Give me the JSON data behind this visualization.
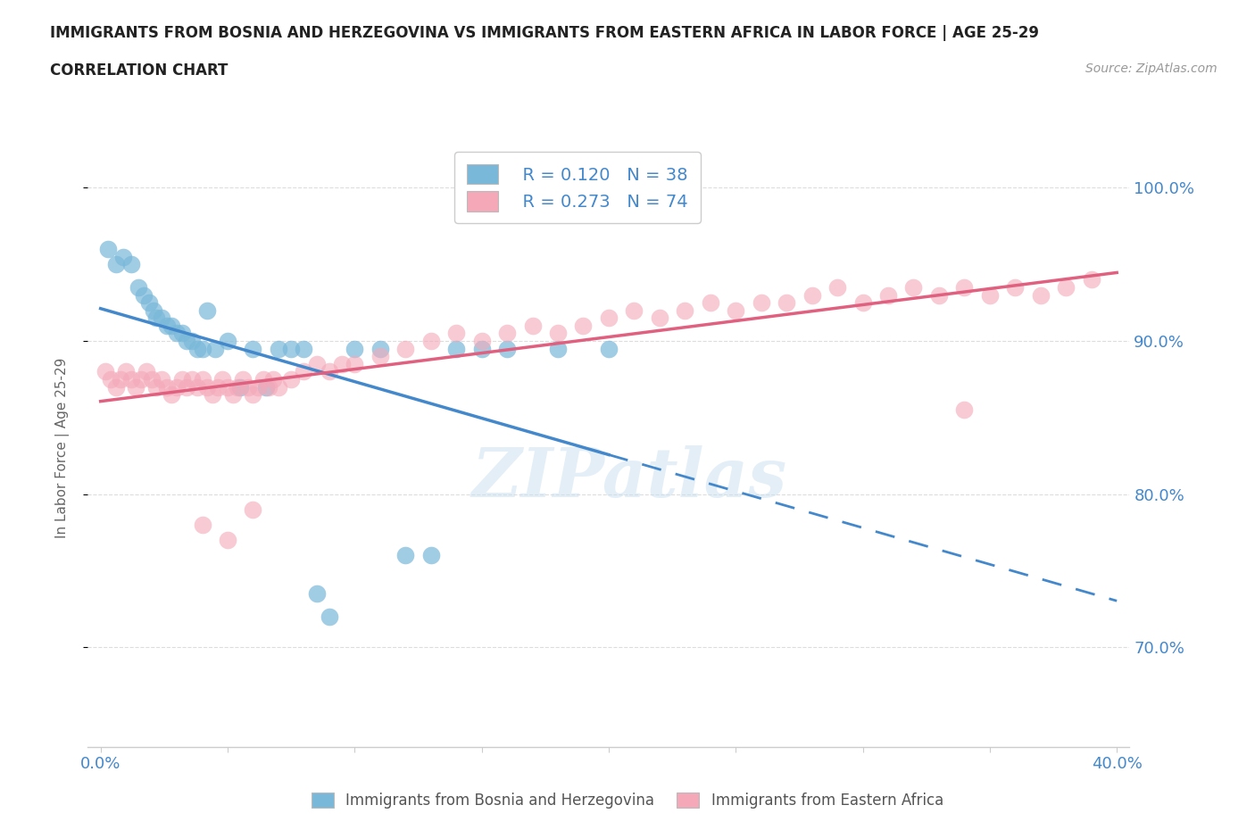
{
  "title_line1": "IMMIGRANTS FROM BOSNIA AND HERZEGOVINA VS IMMIGRANTS FROM EASTERN AFRICA IN LABOR FORCE | AGE 25-29",
  "title_line2": "CORRELATION CHART",
  "source_text": "Source: ZipAtlas.com",
  "ylabel": "In Labor Force | Age 25-29",
  "xlim": [
    -0.005,
    0.405
  ],
  "ylim": [
    0.635,
    1.025
  ],
  "x_ticks": [
    0.0,
    0.05,
    0.1,
    0.15,
    0.2,
    0.25,
    0.3,
    0.35,
    0.4
  ],
  "y_ticks": [
    0.7,
    0.8,
    0.9,
    1.0
  ],
  "y_tick_labels": [
    "70.0%",
    "80.0%",
    "90.0%",
    "100.0%"
  ],
  "bosnia_color": "#7ab8d9",
  "eastern_africa_color": "#f4a8b8",
  "legend_R_bosnia": "R = 0.120",
  "legend_N_bosnia": "N = 38",
  "legend_R_eastern": "R = 0.273",
  "legend_N_eastern": "N = 74",
  "watermark": "ZIPatlas",
  "background_color": "#ffffff",
  "grid_color": "#dddddd",
  "axis_color": "#cccccc",
  "tick_label_color": "#4488cc",
  "bosnia_scatter_x": [
    0.003,
    0.006,
    0.009,
    0.012,
    0.015,
    0.017,
    0.019,
    0.021,
    0.022,
    0.024,
    0.026,
    0.028,
    0.03,
    0.032,
    0.034,
    0.036,
    0.038,
    0.04,
    0.042,
    0.045,
    0.05,
    0.055,
    0.06,
    0.065,
    0.07,
    0.075,
    0.08,
    0.085,
    0.09,
    0.1,
    0.11,
    0.12,
    0.13,
    0.14,
    0.15,
    0.16,
    0.18,
    0.2
  ],
  "bosnia_scatter_y": [
    0.96,
    0.95,
    0.955,
    0.95,
    0.935,
    0.93,
    0.925,
    0.92,
    0.915,
    0.915,
    0.91,
    0.91,
    0.905,
    0.905,
    0.9,
    0.9,
    0.895,
    0.895,
    0.92,
    0.895,
    0.9,
    0.87,
    0.895,
    0.87,
    0.895,
    0.895,
    0.895,
    0.735,
    0.72,
    0.895,
    0.895,
    0.76,
    0.76,
    0.895,
    0.895,
    0.895,
    0.895,
    0.895
  ],
  "eastern_scatter_x": [
    0.002,
    0.004,
    0.006,
    0.008,
    0.01,
    0.012,
    0.014,
    0.016,
    0.018,
    0.02,
    0.022,
    0.024,
    0.026,
    0.028,
    0.03,
    0.032,
    0.034,
    0.036,
    0.038,
    0.04,
    0.042,
    0.044,
    0.046,
    0.048,
    0.05,
    0.052,
    0.054,
    0.056,
    0.058,
    0.06,
    0.062,
    0.064,
    0.066,
    0.068,
    0.07,
    0.075,
    0.08,
    0.085,
    0.09,
    0.095,
    0.1,
    0.11,
    0.12,
    0.13,
    0.14,
    0.15,
    0.16,
    0.17,
    0.18,
    0.19,
    0.2,
    0.21,
    0.22,
    0.23,
    0.24,
    0.25,
    0.26,
    0.27,
    0.28,
    0.29,
    0.3,
    0.31,
    0.32,
    0.33,
    0.34,
    0.35,
    0.36,
    0.37,
    0.38,
    0.39,
    0.04,
    0.05,
    0.06,
    0.34
  ],
  "eastern_scatter_y": [
    0.88,
    0.875,
    0.87,
    0.875,
    0.88,
    0.875,
    0.87,
    0.875,
    0.88,
    0.875,
    0.87,
    0.875,
    0.87,
    0.865,
    0.87,
    0.875,
    0.87,
    0.875,
    0.87,
    0.875,
    0.87,
    0.865,
    0.87,
    0.875,
    0.87,
    0.865,
    0.87,
    0.875,
    0.87,
    0.865,
    0.87,
    0.875,
    0.87,
    0.875,
    0.87,
    0.875,
    0.88,
    0.885,
    0.88,
    0.885,
    0.885,
    0.89,
    0.895,
    0.9,
    0.905,
    0.9,
    0.905,
    0.91,
    0.905,
    0.91,
    0.915,
    0.92,
    0.915,
    0.92,
    0.925,
    0.92,
    0.925,
    0.925,
    0.93,
    0.935,
    0.925,
    0.93,
    0.935,
    0.93,
    0.935,
    0.93,
    0.935,
    0.93,
    0.935,
    0.94,
    0.78,
    0.77,
    0.79,
    0.855
  ]
}
